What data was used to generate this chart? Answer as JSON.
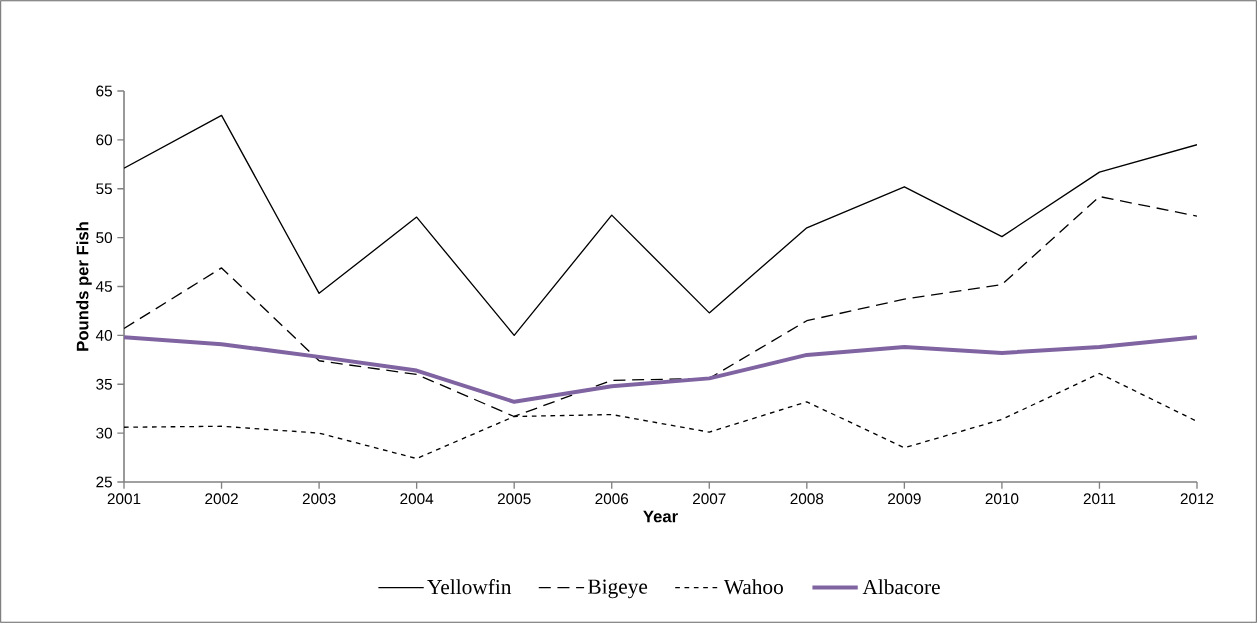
{
  "chart_data": {
    "type": "line",
    "xlabel": "Year",
    "ylabel": "Pounds per Fish",
    "categories": [
      "2001",
      "2002",
      "2003",
      "2004",
      "2005",
      "2006",
      "2007",
      "2008",
      "2009",
      "2010",
      "2011",
      "2012"
    ],
    "ylim": [
      25,
      65
    ],
    "yticks": [
      25,
      30,
      35,
      40,
      45,
      50,
      55,
      60,
      65
    ],
    "legend": "bottom",
    "series": [
      {
        "name": "Yellowfin",
        "color": "#000000",
        "line_style": "solid",
        "values": [
          57.1,
          62.5,
          44.3,
          52.1,
          40.0,
          52.3,
          42.3,
          51.0,
          55.2,
          50.1,
          56.7,
          59.5
        ]
      },
      {
        "name": "Bigeye",
        "color": "#000000",
        "line_style": "dashed",
        "values": [
          40.7,
          46.9,
          37.4,
          36.0,
          31.7,
          35.4,
          35.6,
          41.5,
          43.7,
          45.2,
          54.2,
          52.2
        ]
      },
      {
        "name": "Wahoo",
        "color": "#000000",
        "line_style": "dotted",
        "values": [
          30.6,
          30.7,
          30.0,
          27.4,
          31.7,
          31.9,
          30.1,
          33.2,
          28.5,
          31.4,
          36.1,
          31.2
        ]
      },
      {
        "name": "Albacore",
        "color": "#8064a2",
        "line_style": "solid",
        "values": [
          39.8,
          39.1,
          37.8,
          36.4,
          33.2,
          34.8,
          35.6,
          38.0,
          38.8,
          38.2,
          38.8,
          39.8
        ]
      }
    ]
  }
}
